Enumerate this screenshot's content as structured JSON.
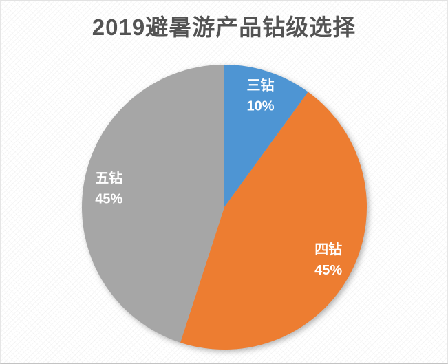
{
  "page": {
    "title": "2019避暑游产品钻级选择"
  },
  "chart_data": {
    "type": "pie",
    "title": "2019避暑游产品钻级选择",
    "categories": [
      "三钻",
      "四钻",
      "五钻"
    ],
    "values": [
      10,
      45,
      45
    ],
    "percent_labels": [
      "10%",
      "45%",
      "45%"
    ],
    "series_colors": [
      "#4E95D3",
      "#ED7D31",
      "#A6A6A6"
    ],
    "start_angle_deg": 0,
    "direction": "clockwise",
    "legend": "none",
    "data_label_color": "#FFFFFF",
    "title_color": "#535353",
    "background_color": "#FFFFFF"
  }
}
